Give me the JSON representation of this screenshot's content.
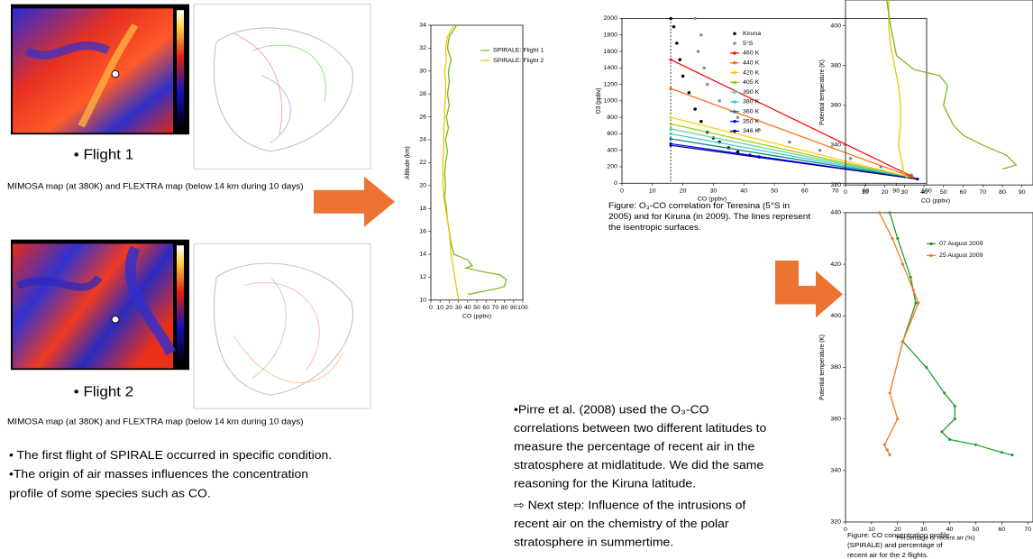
{
  "flight_maps": [
    {
      "label": "• Flight 1",
      "caption": "MIMOSA map (at 380K) and FLEXTRA map (below 14 km during 10 days)"
    },
    {
      "label": "• Flight 2",
      "caption": "MIMOSA map (at 380K) and FLEXTRA map (below 14 km during 10 days)"
    }
  ],
  "notes": [
    "• The first flight of SPIRALE occurred in specific condition.",
    "•The origin of air masses influences the concentration",
    "profile of some species such as CO."
  ],
  "discussion": {
    "lines": [
      "•Pirre et al. (2008) used the O₃-CO",
      "correlations between two different latitudes to",
      "measure the percentage of recent air in the",
      "stratosphere at midlatitude. We did the same",
      "reasoning for  the Kiruna latitude."
    ],
    "next_step": [
      "⇨  Next step: Influence of the intrusions of",
      "recent air on the chemistry of the polar",
      "stratosphere in summertime."
    ]
  },
  "chart_data": [
    {
      "type": "line",
      "xlabel": "CO (ppbv)",
      "ylabel": "Altitude (km)",
      "xlim": [
        0,
        100
      ],
      "xticks": [
        0,
        10,
        20,
        30,
        40,
        50,
        60,
        70,
        80,
        90,
        100
      ],
      "ylim": [
        10,
        34
      ],
      "yticks": [
        10,
        12,
        14,
        16,
        18,
        20,
        22,
        24,
        26,
        28,
        30,
        32,
        34
      ],
      "series": [
        {
          "name": "SPIRALE: Flight 1",
          "color": "#7cb518",
          "mode": "lines",
          "x": [
            28,
            20,
            18,
            22,
            19,
            20,
            18,
            20,
            17,
            19,
            16,
            18,
            16,
            15,
            16,
            15,
            17,
            18,
            20,
            22,
            25,
            40,
            45,
            38,
            55,
            75,
            82,
            80,
            72,
            40
          ],
          "values": [
            34,
            33,
            32,
            31,
            30,
            29,
            28,
            27,
            26,
            25,
            24,
            23,
            22,
            21,
            20,
            19,
            18,
            17,
            16,
            15,
            14,
            13.5,
            13,
            12.8,
            12.5,
            12.2,
            11.8,
            11.2,
            11,
            10.5
          ]
        },
        {
          "name": "SPIRALE: Flight 2",
          "color": "#e8c800",
          "mode": "lines",
          "x": [
            25,
            18,
            16,
            17,
            15,
            16,
            16,
            15,
            15,
            14,
            14,
            14,
            13,
            13,
            13,
            14,
            16,
            18,
            20,
            21,
            22,
            24,
            26,
            28,
            30
          ],
          "values": [
            34,
            33,
            32,
            31,
            30,
            29,
            28,
            27,
            26,
            25,
            24,
            23,
            22,
            21,
            20,
            19,
            18,
            17,
            16,
            15,
            14,
            13,
            12,
            11,
            10
          ]
        }
      ]
    },
    {
      "type": "scatter",
      "xlabel": "CO (ppbv)",
      "ylabel": "O3 (ppbv)",
      "xlim": [
        0,
        100
      ],
      "xticks": [
        0,
        10,
        20,
        30,
        40,
        50,
        60,
        70,
        80,
        90,
        100
      ],
      "ylim": [
        0,
        2000
      ],
      "yticks": [
        0,
        200,
        400,
        600,
        800,
        1000,
        1200,
        1400,
        1600,
        1800,
        2000
      ],
      "vline": 16,
      "caption": [
        "Figure: O₃-CO correlation for Teresina (5°S in",
        "2005) and for Kiruna (in 2009). The lines represent",
        "the isentropic surfaces."
      ],
      "series": [
        {
          "name": "Kiruna",
          "color": "#000000",
          "mode": "markers",
          "x": [
            16,
            17,
            18,
            19,
            20,
            22,
            24,
            26,
            28,
            30,
            32,
            35,
            38,
            42,
            45
          ],
          "values": [
            2000,
            1900,
            1700,
            1500,
            1300,
            1100,
            900,
            750,
            620,
            550,
            500,
            430,
            380,
            340,
            320
          ]
        },
        {
          "name": "5°S",
          "color": "#8c8c8c",
          "mode": "markers",
          "x": [
            24,
            26,
            25,
            27,
            28,
            32,
            38,
            45,
            55,
            65,
            75,
            85,
            95
          ],
          "values": [
            2000,
            1800,
            1600,
            1400,
            1200,
            1000,
            800,
            650,
            500,
            400,
            300,
            200,
            100
          ]
        },
        {
          "name": "460 K",
          "color": "#ff0000",
          "mode": "lines+markers",
          "x": [
            16,
            97
          ],
          "values": [
            1500,
            50
          ]
        },
        {
          "name": "440 K",
          "color": "#ff6600",
          "mode": "lines+markers",
          "x": [
            16,
            97
          ],
          "values": [
            1150,
            50
          ]
        },
        {
          "name": "420 K",
          "color": "#ffcc00",
          "mode": "lines+markers",
          "x": [
            16,
            97
          ],
          "values": [
            800,
            50
          ]
        },
        {
          "name": "405 K",
          "color": "#99cc00",
          "mode": "lines+markers",
          "x": [
            16,
            97
          ],
          "values": [
            720,
            50
          ]
        },
        {
          "name": "390 K",
          "color": "#66cc99",
          "mode": "lines+markers",
          "x": [
            16,
            97
          ],
          "values": [
            660,
            50
          ]
        },
        {
          "name": "380 K",
          "color": "#33cccc",
          "mode": "lines+markers",
          "x": [
            16,
            97
          ],
          "values": [
            600,
            50
          ]
        },
        {
          "name": "360 K",
          "color": "#008080",
          "mode": "lines+markers",
          "x": [
            16,
            97
          ],
          "values": [
            540,
            50
          ]
        },
        {
          "name": "350 K",
          "color": "#0000ff",
          "mode": "lines+markers",
          "x": [
            16,
            97
          ],
          "values": [
            480,
            50
          ]
        },
        {
          "name": "346 K",
          "color": "#000080",
          "mode": "lines+markers",
          "x": [
            16,
            97
          ],
          "values": [
            460,
            50
          ]
        }
      ]
    },
    {
      "type": "line",
      "xlabel": "CO (ppbv)",
      "ylabel": "Potential temperature (K)",
      "xlim": [
        0,
        95.6
      ],
      "xticks": [
        0,
        10,
        20,
        30,
        40,
        50,
        60,
        70,
        80,
        90
      ],
      "ylim": [
        320,
        413
      ],
      "yticks": [
        320,
        340,
        360,
        380,
        400
      ],
      "series": [
        {
          "color": "#e8c800",
          "mode": "lines",
          "x": [
            22,
            22,
            23,
            25,
            27,
            28,
            28,
            27,
            29,
            30,
            32
          ],
          "values": [
            413,
            400,
            390,
            380,
            370,
            360,
            350,
            340,
            330,
            325,
            323
          ]
        },
        {
          "color": "#7cb518",
          "mode": "lines",
          "x": [
            21,
            23,
            26,
            35,
            48,
            52,
            50,
            55,
            60,
            70,
            82,
            87,
            80
          ],
          "values": [
            413,
            400,
            385,
            378,
            375,
            370,
            360,
            350,
            345,
            340,
            335,
            330,
            328
          ]
        }
      ]
    },
    {
      "type": "line",
      "xlabel": "Percentage of recent air (%)",
      "ylabel": "Potential temperature (K)",
      "xlim": [
        0,
        72
      ],
      "xticks": [
        0,
        10,
        20,
        30,
        40,
        50,
        60,
        70
      ],
      "ylim": [
        320,
        440
      ],
      "yticks": [
        320,
        340,
        360,
        380,
        400,
        420,
        440
      ],
      "caption": [
        "Figure: CO concentration profile",
        "(SPIRALE) and percentage of",
        "recent air for the 2 flights."
      ],
      "series": [
        {
          "name": "07 August 2009",
          "color": "#1e9a2a",
          "mode": "lines+markers",
          "x": [
            17,
            20,
            25,
            27,
            22,
            31,
            38,
            42,
            42,
            37,
            40,
            50,
            60,
            64
          ],
          "values": [
            440,
            430,
            415,
            405,
            390,
            380,
            370,
            365,
            360,
            355,
            352,
            350,
            347,
            346
          ]
        },
        {
          "name": "25 August 2009",
          "color": "#f07820",
          "mode": "lines+markers",
          "x": [
            13,
            18,
            22,
            26,
            28,
            22,
            17,
            20,
            15,
            16,
            17
          ],
          "values": [
            440,
            430,
            420,
            410,
            405,
            390,
            370,
            360,
            350,
            348,
            346
          ]
        }
      ]
    }
  ]
}
